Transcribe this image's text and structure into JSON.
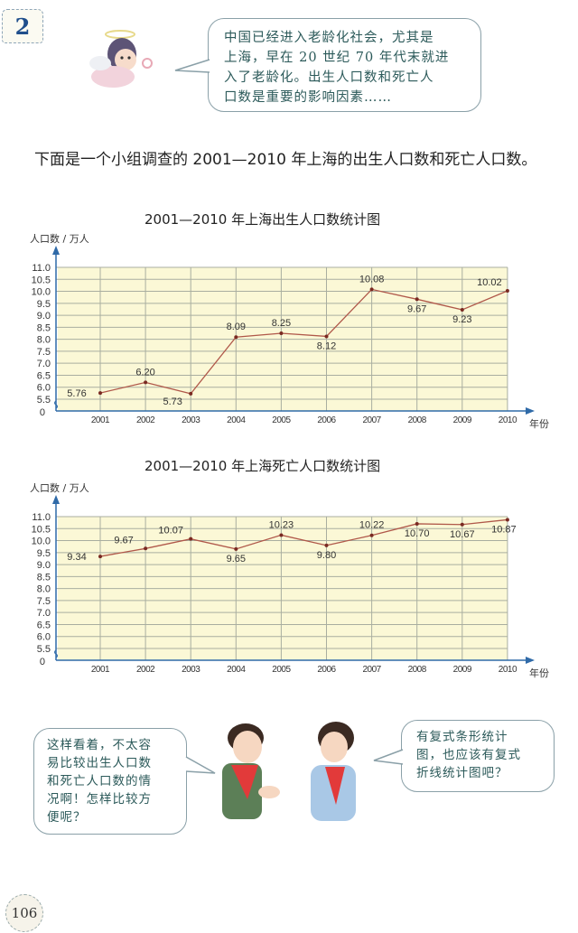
{
  "header": {
    "section_number": "2"
  },
  "top_bubble": {
    "lines": [
      "中国已经进入老龄化社会，尤其是",
      "上海，早在 20 世纪 70 年代末就进",
      "入了老龄化。出生人口数和死亡人",
      "口数是重要的影响因素……"
    ]
  },
  "intro_text": "下面是一个小组调查的 2001—2010 年上海的出生人口数和死亡人口数。",
  "colors": {
    "plot_bg": "#fbf8d6",
    "grid": "#a9aea0",
    "axis": "#2f6aa8",
    "line": "#b0584a",
    "point": "#7a2a22"
  },
  "chart_data": [
    {
      "type": "line",
      "title": "2001—2010 年上海出生人口数统计图",
      "xlabel": "年份",
      "ylabel": "人口数 / 万人",
      "categories": [
        "2001",
        "2002",
        "2003",
        "2004",
        "2005",
        "2006",
        "2007",
        "2008",
        "2009",
        "2010"
      ],
      "values": [
        5.76,
        6.2,
        5.73,
        8.09,
        8.25,
        8.12,
        10.08,
        9.67,
        9.23,
        10.02
      ],
      "value_labels": [
        "5.76",
        "6.20",
        "5.73",
        "8.09",
        "8.25",
        "8.12",
        "10.08",
        "9.67",
        "9.23",
        "10.02"
      ],
      "yticks": [
        "0",
        "5.5",
        "6.0",
        "6.5",
        "7.0",
        "7.5",
        "8.0",
        "8.5",
        "9.0",
        "9.5",
        "10.0",
        "10.5",
        "11.0"
      ],
      "ylim": [
        5.5,
        11.0
      ],
      "axis_break": true,
      "grid": true
    },
    {
      "type": "line",
      "title": "2001—2010 年上海死亡人口数统计图",
      "xlabel": "年份",
      "ylabel": "人口数 / 万人",
      "categories": [
        "2001",
        "2002",
        "2003",
        "2004",
        "2005",
        "2006",
        "2007",
        "2008",
        "2009",
        "2010"
      ],
      "values": [
        9.34,
        9.67,
        10.07,
        9.65,
        10.23,
        9.8,
        10.22,
        10.7,
        10.67,
        10.87
      ],
      "value_labels": [
        "9.34",
        "9.67",
        "10.07",
        "9.65",
        "10.23",
        "9.80",
        "10.22",
        "10.70",
        "10.67",
        "10.87"
      ],
      "yticks": [
        "0",
        "5.5",
        "6.0",
        "6.5",
        "7.0",
        "7.5",
        "8.0",
        "8.5",
        "9.0",
        "9.5",
        "10.0",
        "10.5",
        "11.0"
      ],
      "ylim": [
        5.5,
        11.0
      ],
      "axis_break": true,
      "grid": true
    }
  ],
  "bottom_bubbles": {
    "left": {
      "lines": [
        "这样看着，不太容",
        "易比较出生人口数",
        "和死亡人口数的情",
        "况啊！怎样比较方",
        "便呢？"
      ]
    },
    "right": {
      "lines": [
        "有复式条形统计",
        "图，也应该有复式",
        "折线统计图吧？"
      ]
    }
  },
  "footer": {
    "page_number": "106"
  }
}
